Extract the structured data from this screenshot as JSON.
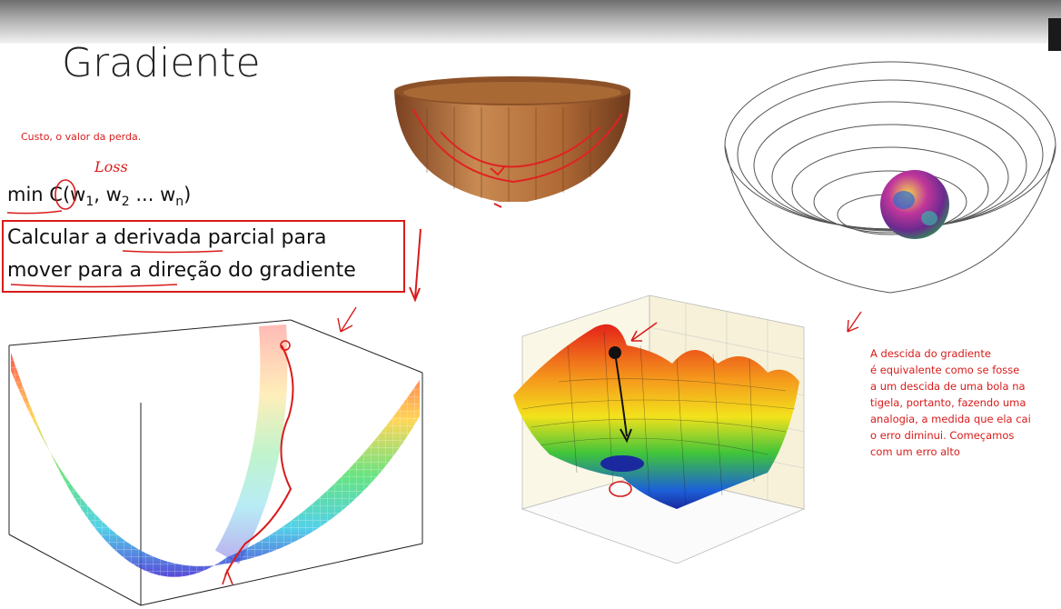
{
  "slide": {
    "title": "Gradiente",
    "note_top": "Custo, o valor da perda.",
    "annotation_loss": "Loss",
    "formula": {
      "prefix": "min C(w",
      "sub1": "1",
      "sep1": ", w",
      "sub2": "2",
      "sep2": " ... w",
      "subn": "n",
      "suffix": ")"
    },
    "box_line1": "Calcular a derivada parcial para",
    "box_line2": "mover para a direção do gradiente",
    "note_right": [
      "A descida do gradiente",
      "é equivalente como se fosse",
      "a um descida de uma bola na",
      "tigela, portanto, fazendo uma",
      "analogia, a medida que ela cai",
      "o erro diminui. Começamos",
      "com um erro alto"
    ]
  },
  "colors": {
    "annotation": "#d81b1b",
    "text": "#111111",
    "bowl_wood": "#b06a36"
  },
  "icons": [
    "wooden-bowl-illustration",
    "wireframe-bowl-ball-illustration",
    "parabolic-surface-plot",
    "loss-surface-plot"
  ]
}
